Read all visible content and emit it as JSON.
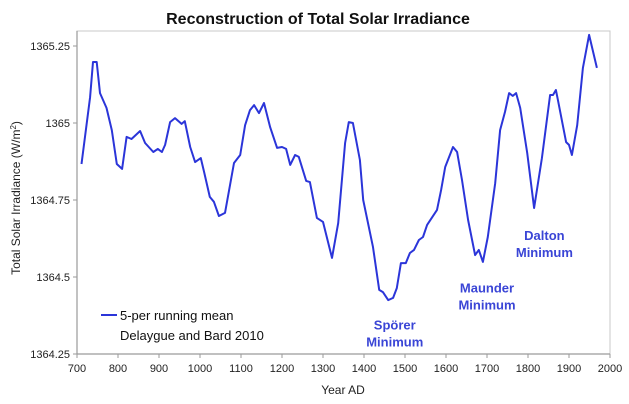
{
  "chart_data": {
    "type": "line",
    "title": "Reconstruction of Total Solar Irradiance",
    "xlabel": "Year AD",
    "ylabel": "Total Solar Irradiance (W/m²)",
    "ylabel_main": "Total Solar Irradiance (W/m",
    "ylabel_sup": "2",
    "ylabel_close": ")",
    "xlim": [
      700,
      2000
    ],
    "ylim": [
      1364.25,
      1365.3
    ],
    "xticks": [
      700,
      800,
      900,
      1000,
      1100,
      1200,
      1300,
      1400,
      1500,
      1600,
      1700,
      1800,
      1900,
      2000
    ],
    "xtick_labels": [
      "700",
      "800",
      "900",
      "1000",
      "1100",
      "1200",
      "1300",
      "1400",
      "1500",
      "1600",
      "1700",
      "1800",
      "1900",
      "2000"
    ],
    "yticks": [
      1364.25,
      1364.5,
      1364.75,
      1365,
      1365.25
    ],
    "ytick_labels": [
      "1364.25",
      "1364.5",
      "1364.75",
      "1365",
      "1365.25"
    ],
    "grid": false,
    "legend": {
      "placement": "bottom-left",
      "entries": [
        {
          "line1": "5-per running mean",
          "line2": "Delaygue and Bard 2010",
          "color": "#2b35d9"
        }
      ]
    },
    "series": [
      {
        "name": "5-per running mean Delaygue and Bard 2010",
        "color": "#2b35d9",
        "x": [
          711,
          732,
          739,
          748,
          756,
          772,
          785,
          797,
          810,
          821,
          833,
          854,
          866,
          886,
          897,
          907,
          915,
          927,
          939,
          955,
          963,
          976,
          988,
          1002,
          1010,
          1024,
          1034,
          1046,
          1061,
          1083,
          1098,
          1110,
          1122,
          1132,
          1144,
          1156,
          1171,
          1188,
          1200,
          1210,
          1220,
          1232,
          1241,
          1259,
          1268,
          1285,
          1300,
          1322,
          1337,
          1354,
          1363,
          1373,
          1390,
          1398,
          1422,
          1437,
          1446,
          1459,
          1471,
          1480,
          1490,
          1502,
          1512,
          1522,
          1534,
          1544,
          1554,
          1578,
          1588,
          1598,
          1617,
          1627,
          1639,
          1654,
          1671,
          1680,
          1690,
          1702,
          1720,
          1732,
          1744,
          1754,
          1763,
          1771,
          1781,
          1798,
          1815,
          1834,
          1854,
          1861,
          1868,
          1873,
          1893,
          1900,
          1907,
          1920,
          1934,
          1949,
          1968
        ],
        "y": [
          1364.867,
          1365.084,
          1365.198,
          1365.198,
          1365.097,
          1365.049,
          1364.977,
          1364.867,
          1364.851,
          1364.955,
          1364.948,
          1364.974,
          1364.935,
          1364.906,
          1364.916,
          1364.906,
          1364.929,
          1365.003,
          1365.016,
          1364.997,
          1365.006,
          1364.922,
          1364.873,
          1364.886,
          1364.841,
          1364.76,
          1364.744,
          1364.698,
          1364.708,
          1364.87,
          1364.896,
          1364.993,
          1365.042,
          1365.058,
          1365.032,
          1365.065,
          1364.987,
          1364.919,
          1364.922,
          1364.916,
          1364.864,
          1364.896,
          1364.89,
          1364.812,
          1364.808,
          1364.692,
          1364.679,
          1364.562,
          1364.675,
          1364.935,
          1365.003,
          1365.0,
          1364.88,
          1364.75,
          1364.597,
          1364.458,
          1364.451,
          1364.425,
          1364.432,
          1364.464,
          1364.545,
          1364.545,
          1364.578,
          1364.588,
          1364.62,
          1364.63,
          1364.669,
          1364.718,
          1364.782,
          1364.857,
          1364.922,
          1364.906,
          1364.815,
          1364.685,
          1364.571,
          1364.588,
          1364.549,
          1364.63,
          1364.805,
          1364.977,
          1365.036,
          1365.097,
          1365.088,
          1365.097,
          1365.049,
          1364.903,
          1364.724,
          1364.886,
          1365.091,
          1365.091,
          1365.107,
          1365.075,
          1364.938,
          1364.929,
          1364.896,
          1364.993,
          1365.179,
          1365.286,
          1365.179
        ]
      }
    ],
    "annotations": [
      {
        "name": "sporer",
        "lines": [
          "Spörer",
          "Minimum"
        ],
        "x": 1475,
        "y": 1364.33
      },
      {
        "name": "maunder",
        "lines": [
          "Maunder",
          "Minimum"
        ],
        "x": 1700,
        "y": 1364.45
      },
      {
        "name": "dalton",
        "lines": [
          "Dalton",
          "Minimum"
        ],
        "x": 1840,
        "y": 1364.62
      }
    ],
    "annotation_color": "#3a45d6"
  }
}
